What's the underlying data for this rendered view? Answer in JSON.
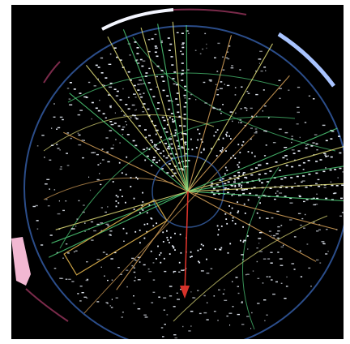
{
  "scene": {
    "subject": "particle-collision-event-display",
    "colors": {
      "background": "#000000",
      "outer_ring": "#2b4d8a",
      "inner_ring": "#2d4f88",
      "hits": "#e8eef8",
      "track_yellow": "#e3e07a",
      "track_green": "#4fcf7a",
      "track_orange": "#d9a35a",
      "missing_energy_arrow": "#d8322a",
      "calorimeter_pink": "#f2b8d2",
      "calorimeter_white": "#f4f6ff",
      "calorimeter_blue": "#a9c4ff",
      "calorimeter_magenta": "#7a2a4a",
      "jet_box": "#c9a044"
    }
  }
}
